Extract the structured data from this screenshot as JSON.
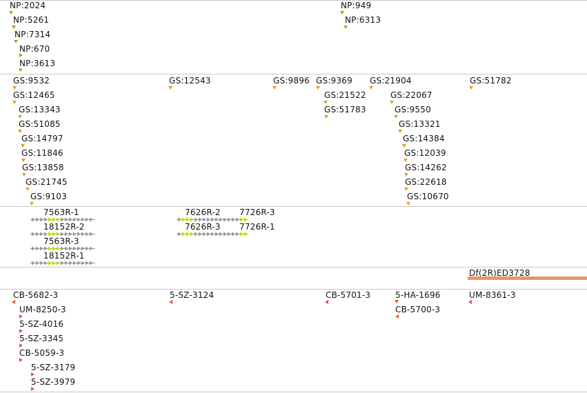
{
  "colors": {
    "np_marker": "#c8941a",
    "gs_marker": "#e0a222",
    "stock_marker": "#e05a3a",
    "transcript_line": "#999999",
    "exon": "#c8d400",
    "deficiency_bar": "#e8956a",
    "separator": "#c8c8c8"
  },
  "np_track": {
    "items": [
      "NP:2024",
      "NP:5261",
      "NP:7314",
      "NP:670",
      "NP:3613",
      "NP:949",
      "NP:6313"
    ]
  },
  "gs_track": {
    "items": [
      "GS:9532",
      "GS:12465",
      "GS:13343",
      "GS:51085",
      "GS:14797",
      "GS:11846",
      "GS:13858",
      "GS:21745",
      "GS:9103",
      "GS:12543",
      "GS:9896",
      "GS:9369",
      "GS:21522",
      "GS:51783",
      "GS:21904",
      "GS:22067",
      "GS:9550",
      "GS:13321",
      "GS:14384",
      "GS:12039",
      "GS:14262",
      "GS:22618",
      "GS:10670",
      "GS:51782"
    ]
  },
  "transcript_track": {
    "items": [
      "7563R-1",
      "18152R-2",
      "7563R-3",
      "18152R-1",
      "7626R-2",
      "7626R-3",
      "7726R-3",
      "7726R-1"
    ]
  },
  "deficiency_track": {
    "items": [
      "Df(2R)ED3728"
    ]
  },
  "stock_track": {
    "items": [
      "CB-5682-3",
      "UM-8250-3",
      "5-SZ-4016",
      "5-SZ-3345",
      "CB-5059-3",
      "5-SZ-3179",
      "5-SZ-3979",
      "5-SZ-3124",
      "CB-5701-3",
      "5-HA-1696",
      "CB-5700-3",
      "UM-8361-3"
    ]
  }
}
